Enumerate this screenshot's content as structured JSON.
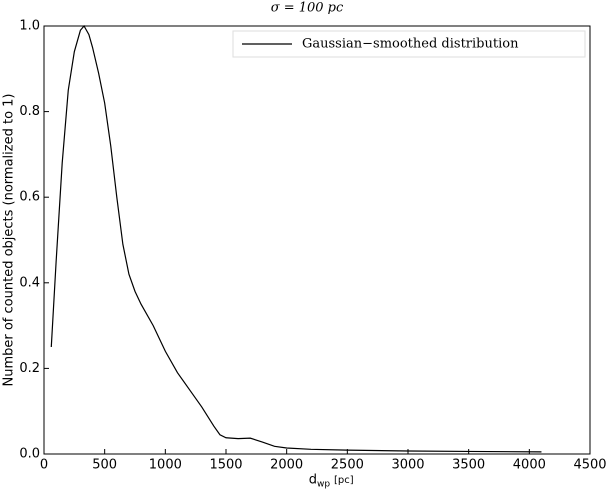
{
  "chart_data": {
    "type": "line",
    "title": "σ = 100 pc",
    "x_label": "d",
    "x_label_sub": "wp",
    "x_label_unit": "[pc]",
    "y_label": "Number of counted objects (normalized to 1)",
    "x": [
      60,
      100,
      150,
      200,
      250,
      300,
      330,
      370,
      400,
      450,
      500,
      550,
      600,
      650,
      700,
      750,
      800,
      900,
      1000,
      1100,
      1200,
      1300,
      1400,
      1450,
      1500,
      1600,
      1700,
      1800,
      1900,
      2000,
      2200,
      2500,
      3000,
      3500,
      4100
    ],
    "series": [
      {
        "name": "Gaussian−smoothed distribution",
        "color": "#000000",
        "values": [
          0.25,
          0.45,
          0.68,
          0.85,
          0.94,
          0.99,
          1.0,
          0.98,
          0.95,
          0.89,
          0.82,
          0.72,
          0.6,
          0.49,
          0.42,
          0.38,
          0.35,
          0.3,
          0.24,
          0.19,
          0.15,
          0.11,
          0.065,
          0.045,
          0.038,
          0.036,
          0.037,
          0.028,
          0.018,
          0.014,
          0.011,
          0.009,
          0.007,
          0.006,
          0.005
        ]
      }
    ],
    "xlim": [
      0,
      4500
    ],
    "xticks": [
      0,
      500,
      1000,
      1500,
      2000,
      2500,
      3000,
      3500,
      4000,
      4500
    ],
    "ylim": [
      0,
      1
    ],
    "yticks": [
      {
        "value": 0,
        "label": "0.0"
      },
      0.2,
      0.4,
      0.6,
      0.8,
      {
        "value": 1,
        "label": "1.0"
      }
    ],
    "legend": "upper right"
  }
}
